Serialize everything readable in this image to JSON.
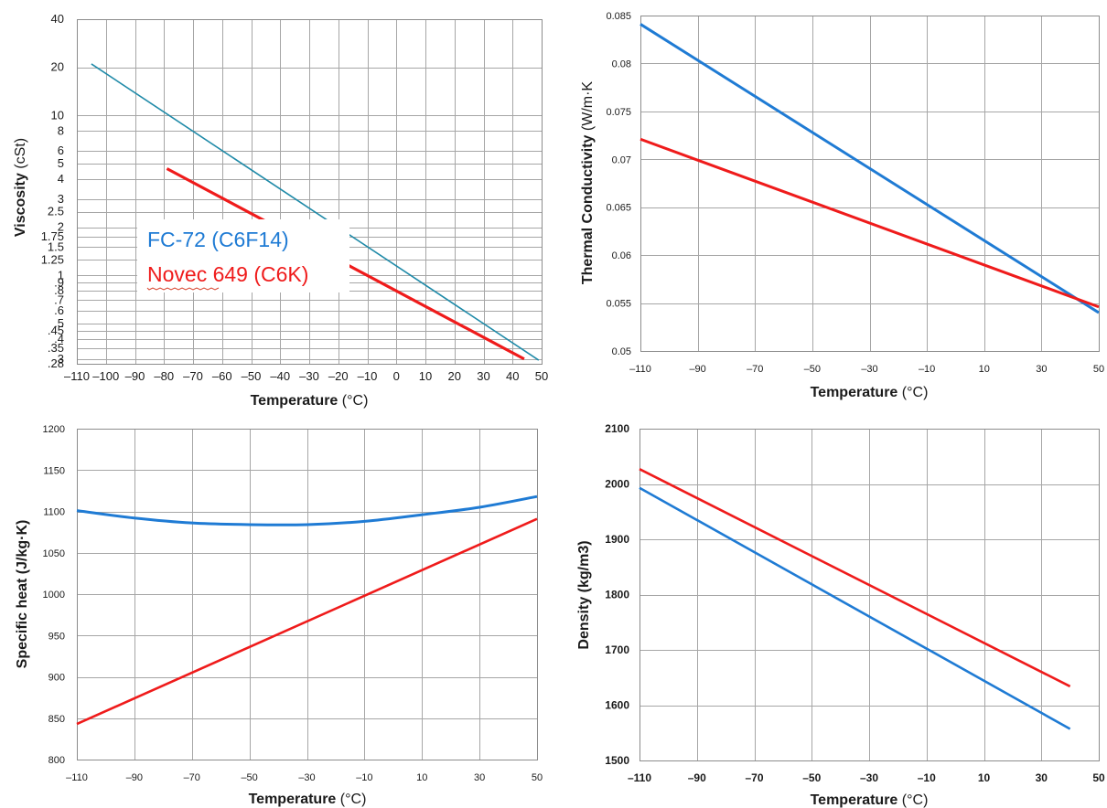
{
  "colors": {
    "fc72": "#1f7bd4",
    "fc72_viscosity": "#1f8aa8",
    "novec": "#ef1b1b",
    "grid": "#a6a6a6"
  },
  "legend": {
    "entries": [
      {
        "text": "FC-72 (C6F14)",
        "color": "#1f7bd4"
      },
      {
        "text": "Novec 649 (C6K)",
        "color": "#ef1b1b",
        "underline": "Novec"
      }
    ]
  },
  "chart_data": [
    {
      "id": "viscosity",
      "type": "line",
      "title": "",
      "xlabel": "Temperature",
      "xunit": "(°C)",
      "ylabel": "Viscosity",
      "yunit": "(cSt)",
      "yscale": "log",
      "xlim": [
        -110,
        50
      ],
      "ylim": [
        0.28,
        40
      ],
      "grid": true,
      "legend": "inside-left",
      "xticks": [
        -110,
        -100,
        -90,
        -80,
        -70,
        -60,
        -50,
        -40,
        -30,
        -20,
        -10,
        0,
        10,
        20,
        30,
        40,
        50
      ],
      "yticks": [
        {
          "v": 40,
          "l": "40"
        },
        {
          "v": 20,
          "l": "20"
        },
        {
          "v": 10,
          "l": "10"
        },
        {
          "v": 8,
          "l": "8"
        },
        {
          "v": 6,
          "l": "6"
        },
        {
          "v": 5,
          "l": "5"
        },
        {
          "v": 4,
          "l": "4"
        },
        {
          "v": 3,
          "l": "3"
        },
        {
          "v": 2.5,
          "l": "2.5"
        },
        {
          "v": 2,
          "l": "2"
        },
        {
          "v": 1.75,
          "l": "1.75"
        },
        {
          "v": 1.5,
          "l": "1.5"
        },
        {
          "v": 1.25,
          "l": "1.25"
        },
        {
          "v": 1,
          "l": "1"
        },
        {
          "v": 0.9,
          "l": ".9"
        },
        {
          "v": 0.8,
          "l": ".8"
        },
        {
          "v": 0.7,
          "l": ".7"
        },
        {
          "v": 0.6,
          "l": ".6"
        },
        {
          "v": 0.5,
          "l": ".5"
        },
        {
          "v": 0.45,
          "l": ".45"
        },
        {
          "v": 0.4,
          "l": ".4"
        },
        {
          "v": 0.35,
          "l": ".35"
        },
        {
          "v": 0.3,
          "l": ".3"
        },
        {
          "v": 0.28,
          "l": ".28"
        }
      ],
      "series": [
        {
          "name": "FC-72 (C6F14)",
          "color": "#1f8aa8",
          "width": 1.6,
          "x": [
            -105,
            49
          ],
          "y": [
            21,
            0.295
          ]
        },
        {
          "name": "Novec 649 (C6K)",
          "color": "#ef1b1b",
          "width": 3.2,
          "x": [
            -79,
            44
          ],
          "y": [
            4.65,
            0.3
          ]
        }
      ]
    },
    {
      "id": "thermal-conductivity",
      "type": "line",
      "title": "",
      "xlabel": "Temperature",
      "xunit": "(°C)",
      "ylabel": "Thermal Conductivity",
      "yunit": "(W/m·K",
      "yscale": "linear",
      "xlim": [
        -110,
        50
      ],
      "ylim": [
        0.05,
        0.085
      ],
      "grid": true,
      "xticks": [
        -110,
        -90,
        -70,
        -50,
        -30,
        -10,
        10,
        30,
        50
      ],
      "yticks": [
        {
          "v": 0.05,
          "l": "0.05"
        },
        {
          "v": 0.055,
          "l": "0.055"
        },
        {
          "v": 0.06,
          "l": "0.06"
        },
        {
          "v": 0.065,
          "l": "0.065"
        },
        {
          "v": 0.07,
          "l": "0.07"
        },
        {
          "v": 0.075,
          "l": "0.075"
        },
        {
          "v": 0.08,
          "l": "0.08"
        },
        {
          "v": 0.085,
          "l": "0.085"
        }
      ],
      "series": [
        {
          "name": "FC-72 (C6F14)",
          "color": "#1f7bd4",
          "width": 3,
          "x": [
            -110,
            50
          ],
          "y": [
            0.0841,
            0.054
          ]
        },
        {
          "name": "Novec 649 (C6K)",
          "color": "#ef1b1b",
          "width": 3,
          "x": [
            -110,
            50
          ],
          "y": [
            0.0721,
            0.0546
          ]
        }
      ]
    },
    {
      "id": "specific-heat",
      "type": "line",
      "title": "",
      "xlabel": "Temperature",
      "xunit": "(°C)",
      "ylabel": "Specific heat (J/kg·K)",
      "yunit": "",
      "yscale": "linear",
      "xlim": [
        -110,
        50
      ],
      "ylim": [
        800,
        1200
      ],
      "grid": true,
      "xticks": [
        -110,
        -90,
        -70,
        -50,
        -30,
        -10,
        10,
        30,
        50
      ],
      "yticks": [
        {
          "v": 800,
          "l": "800"
        },
        {
          "v": 850,
          "l": "850"
        },
        {
          "v": 900,
          "l": "900"
        },
        {
          "v": 950,
          "l": "950"
        },
        {
          "v": 1000,
          "l": "1000"
        },
        {
          "v": 1050,
          "l": "1050"
        },
        {
          "v": 1100,
          "l": "1100"
        },
        {
          "v": 1150,
          "l": "1150"
        },
        {
          "v": 1200,
          "l": "1200"
        }
      ],
      "series": [
        {
          "name": "FC-72 (C6F14)",
          "color": "#1f7bd4",
          "width": 3,
          "x": [
            -110,
            -90,
            -70,
            -50,
            -30,
            -10,
            10,
            30,
            50
          ],
          "y": [
            1101,
            1092,
            1086,
            1084,
            1084,
            1088,
            1096,
            1105,
            1118
          ]
        },
        {
          "name": "Novec 649 (C6K)",
          "color": "#ef1b1b",
          "width": 2.6,
          "x": [
            -110,
            50
          ],
          "y": [
            843,
            1091
          ]
        }
      ]
    },
    {
      "id": "density",
      "type": "line",
      "title": "",
      "xlabel": "Temperature",
      "xunit": "(°C)",
      "ylabel": "Density  (kg/m3)",
      "yunit": "",
      "yscale": "linear",
      "xlim": [
        -110,
        50
      ],
      "ylim": [
        1500,
        2100
      ],
      "grid": true,
      "xticks": [
        -110,
        -90,
        -70,
        -50,
        -30,
        -10,
        10,
        30,
        50
      ],
      "yticks": [
        {
          "v": 1500,
          "l": "1500"
        },
        {
          "v": 1600,
          "l": "1600"
        },
        {
          "v": 1700,
          "l": "1700"
        },
        {
          "v": 1800,
          "l": "1800"
        },
        {
          "v": 1900,
          "l": "1900"
        },
        {
          "v": 2000,
          "l": "2000"
        },
        {
          "v": 2100,
          "l": "2100"
        }
      ],
      "series": [
        {
          "name": "FC-72 (C6F14)",
          "color": "#1f7bd4",
          "width": 2.6,
          "x": [
            -110,
            40
          ],
          "y": [
            1993,
            1557
          ]
        },
        {
          "name": "Novec 649 (C6K)",
          "color": "#ef1b1b",
          "width": 2.6,
          "x": [
            -110,
            40
          ],
          "y": [
            2027,
            1634
          ]
        }
      ]
    }
  ]
}
